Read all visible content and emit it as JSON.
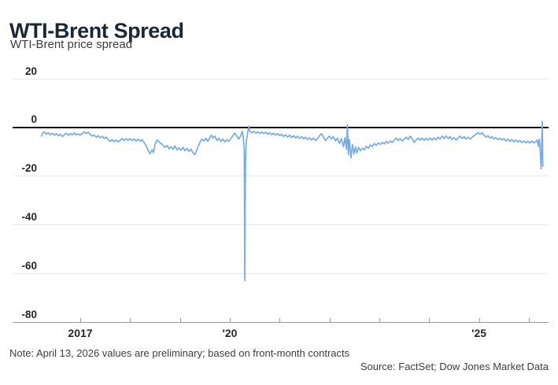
{
  "header": {
    "title": "WTI-Brent Spread",
    "subtitle": "WTI-Brent price spread"
  },
  "footer": {
    "note": "Note: April 13, 2026 values are preliminary; based on front-month contracts",
    "source": "Source: FactSet; Dow Jones Market Data"
  },
  "chart_data": {
    "type": "line",
    "title": "WTI-Brent Spread",
    "subtitle": "WTI-Brent price spread",
    "legend": "none",
    "grid": "horizontal-only",
    "line_color": "#79abde",
    "zero_line_color": "#111111",
    "grid_color": "#e9e9e9",
    "axis_color": "#9a9a9a",
    "label_color": "#23272b",
    "ylim": [
      -80,
      20
    ],
    "yticks": [
      20,
      0,
      -20,
      -40,
      -60,
      -80
    ],
    "xlim_years": [
      2016.1,
      2026.38
    ],
    "xticks": [
      {
        "year": 2017,
        "label": "2017"
      },
      {
        "year": 2018,
        "label": ""
      },
      {
        "year": 2019,
        "label": ""
      },
      {
        "year": 2020,
        "label": "'20"
      },
      {
        "year": 2021,
        "label": ""
      },
      {
        "year": 2022,
        "label": ""
      },
      {
        "year": 2023,
        "label": ""
      },
      {
        "year": 2024,
        "label": ""
      },
      {
        "year": 2025,
        "label": "'25"
      },
      {
        "year": 2026,
        "label": ""
      }
    ],
    "points": [
      [
        2016.22,
        -3.6
      ],
      [
        2016.25,
        -2.2
      ],
      [
        2016.28,
        -1.8
      ],
      [
        2016.32,
        -2.8
      ],
      [
        2016.36,
        -2.2
      ],
      [
        2016.4,
        -3.0
      ],
      [
        2016.44,
        -2.4
      ],
      [
        2016.48,
        -3.2
      ],
      [
        2016.52,
        -2.6
      ],
      [
        2016.56,
        -3.4
      ],
      [
        2016.6,
        -2.8
      ],
      [
        2016.64,
        -3.8
      ],
      [
        2016.68,
        -3.0
      ],
      [
        2016.72,
        -2.4
      ],
      [
        2016.76,
        -3.2
      ],
      [
        2016.8,
        -2.6
      ],
      [
        2016.84,
        -3.0
      ],
      [
        2016.88,
        -2.3
      ],
      [
        2016.92,
        -3.1
      ],
      [
        2016.96,
        -2.7
      ],
      [
        2017.0,
        -3.2
      ],
      [
        2017.04,
        -2.5
      ],
      [
        2017.08,
        -1.8
      ],
      [
        2017.12,
        -2.6
      ],
      [
        2017.16,
        -2.0
      ],
      [
        2017.2,
        -3.0
      ],
      [
        2017.24,
        -3.6
      ],
      [
        2017.28,
        -3.1
      ],
      [
        2017.32,
        -4.0
      ],
      [
        2017.36,
        -3.4
      ],
      [
        2017.4,
        -4.3
      ],
      [
        2017.44,
        -3.7
      ],
      [
        2017.48,
        -4.6
      ],
      [
        2017.52,
        -4.0
      ],
      [
        2017.56,
        -5.0
      ],
      [
        2017.6,
        -5.8
      ],
      [
        2017.64,
        -5.0
      ],
      [
        2017.68,
        -5.9
      ],
      [
        2017.72,
        -5.2
      ],
      [
        2017.76,
        -6.0
      ],
      [
        2017.8,
        -5.3
      ],
      [
        2017.84,
        -4.6
      ],
      [
        2017.88,
        -5.4
      ],
      [
        2017.92,
        -4.7
      ],
      [
        2017.96,
        -5.3
      ],
      [
        2018.0,
        -4.6
      ],
      [
        2018.04,
        -5.4
      ],
      [
        2018.08,
        -4.8
      ],
      [
        2018.12,
        -5.6
      ],
      [
        2018.16,
        -4.9
      ],
      [
        2018.2,
        -5.7
      ],
      [
        2018.24,
        -5.0
      ],
      [
        2018.28,
        -6.2
      ],
      [
        2018.32,
        -7.4
      ],
      [
        2018.36,
        -9.4
      ],
      [
        2018.4,
        -10.8
      ],
      [
        2018.44,
        -9.2
      ],
      [
        2018.47,
        -10.4
      ],
      [
        2018.5,
        -7.0
      ],
      [
        2018.54,
        -5.2
      ],
      [
        2018.58,
        -5.9
      ],
      [
        2018.62,
        -6.6
      ],
      [
        2018.66,
        -7.4
      ],
      [
        2018.7,
        -8.2
      ],
      [
        2018.74,
        -7.4
      ],
      [
        2018.78,
        -8.8
      ],
      [
        2018.82,
        -8.0
      ],
      [
        2018.86,
        -9.0
      ],
      [
        2018.9,
        -7.6
      ],
      [
        2018.94,
        -9.2
      ],
      [
        2018.98,
        -8.4
      ],
      [
        2019.02,
        -9.4
      ],
      [
        2019.06,
        -8.2
      ],
      [
        2019.1,
        -9.6
      ],
      [
        2019.14,
        -8.6
      ],
      [
        2019.18,
        -9.8
      ],
      [
        2019.22,
        -9.0
      ],
      [
        2019.26,
        -10.4
      ],
      [
        2019.3,
        -11.2
      ],
      [
        2019.33,
        -9.6
      ],
      [
        2019.36,
        -8.0
      ],
      [
        2019.4,
        -6.2
      ],
      [
        2019.44,
        -4.8
      ],
      [
        2019.48,
        -5.6
      ],
      [
        2019.52,
        -4.4
      ],
      [
        2019.56,
        -5.8
      ],
      [
        2019.6,
        -4.2
      ],
      [
        2019.63,
        -3.2
      ],
      [
        2019.66,
        -4.4
      ],
      [
        2019.7,
        -3.6
      ],
      [
        2019.74,
        -5.4
      ],
      [
        2019.78,
        -4.4
      ],
      [
        2019.82,
        -5.8
      ],
      [
        2019.86,
        -4.8
      ],
      [
        2019.9,
        -6.0
      ],
      [
        2019.94,
        -5.0
      ],
      [
        2019.98,
        -5.8
      ],
      [
        2020.02,
        -4.6
      ],
      [
        2020.06,
        -3.4
      ],
      [
        2020.1,
        -2.4
      ],
      [
        2020.14,
        -3.6
      ],
      [
        2020.18,
        -4.8
      ],
      [
        2020.22,
        -3.4
      ],
      [
        2020.25,
        -1.6
      ],
      [
        2020.27,
        -4.0
      ],
      [
        2020.29,
        -10.0
      ],
      [
        2020.3,
        -63.0
      ],
      [
        2020.315,
        -14.0
      ],
      [
        2020.33,
        -6.0
      ],
      [
        2020.36,
        -2.0
      ],
      [
        2020.38,
        0.5
      ],
      [
        2020.4,
        -1.6
      ],
      [
        2020.44,
        -2.2
      ],
      [
        2020.48,
        -1.6
      ],
      [
        2020.52,
        -2.4
      ],
      [
        2020.56,
        -1.8
      ],
      [
        2020.6,
        -2.5
      ],
      [
        2020.64,
        -1.9
      ],
      [
        2020.68,
        -2.6
      ],
      [
        2020.72,
        -2.0
      ],
      [
        2020.76,
        -2.8
      ],
      [
        2020.8,
        -2.2
      ],
      [
        2020.84,
        -3.0
      ],
      [
        2020.88,
        -2.4
      ],
      [
        2020.92,
        -3.2
      ],
      [
        2020.96,
        -2.6
      ],
      [
        2021.0,
        -3.4
      ],
      [
        2021.04,
        -2.8
      ],
      [
        2021.08,
        -3.8
      ],
      [
        2021.12,
        -3.0
      ],
      [
        2021.16,
        -4.0
      ],
      [
        2021.2,
        -3.2
      ],
      [
        2021.24,
        -4.2
      ],
      [
        2021.28,
        -3.4
      ],
      [
        2021.32,
        -4.4
      ],
      [
        2021.36,
        -3.6
      ],
      [
        2021.4,
        -4.6
      ],
      [
        2021.44,
        -3.8
      ],
      [
        2021.48,
        -4.8
      ],
      [
        2021.52,
        -4.0
      ],
      [
        2021.56,
        -5.0
      ],
      [
        2021.6,
        -4.2
      ],
      [
        2021.64,
        -5.2
      ],
      [
        2021.68,
        -4.4
      ],
      [
        2021.72,
        -5.4
      ],
      [
        2021.76,
        -4.6
      ],
      [
        2021.8,
        -3.4
      ],
      [
        2021.84,
        -2.6
      ],
      [
        2021.88,
        -4.0
      ],
      [
        2021.92,
        -5.4
      ],
      [
        2021.96,
        -4.4
      ],
      [
        2022.0,
        -3.6
      ],
      [
        2022.04,
        -4.8
      ],
      [
        2022.08,
        -3.8
      ],
      [
        2022.12,
        -5.6
      ],
      [
        2022.16,
        -4.4
      ],
      [
        2022.2,
        -6.6
      ],
      [
        2022.24,
        -4.6
      ],
      [
        2022.28,
        -8.0
      ],
      [
        2022.31,
        -4.2
      ],
      [
        2022.34,
        -9.0
      ],
      [
        2022.36,
        1.0
      ],
      [
        2022.38,
        -11.2
      ],
      [
        2022.4,
        -5.0
      ],
      [
        2022.43,
        -12.6
      ],
      [
        2022.46,
        -7.0
      ],
      [
        2022.49,
        -11.0
      ],
      [
        2022.52,
        -8.0
      ],
      [
        2022.55,
        -10.6
      ],
      [
        2022.58,
        -8.2
      ],
      [
        2022.62,
        -9.6
      ],
      [
        2022.66,
        -8.6
      ],
      [
        2022.7,
        -9.2
      ],
      [
        2022.74,
        -7.8
      ],
      [
        2022.78,
        -8.6
      ],
      [
        2022.82,
        -7.2
      ],
      [
        2022.86,
        -7.9
      ],
      [
        2022.9,
        -6.6
      ],
      [
        2022.94,
        -7.4
      ],
      [
        2022.98,
        -6.4
      ],
      [
        2023.02,
        -7.0
      ],
      [
        2023.06,
        -6.2
      ],
      [
        2023.1,
        -6.8
      ],
      [
        2023.14,
        -5.8
      ],
      [
        2023.18,
        -6.5
      ],
      [
        2023.22,
        -5.6
      ],
      [
        2023.26,
        -6.2
      ],
      [
        2023.3,
        -5.2
      ],
      [
        2023.34,
        -4.4
      ],
      [
        2023.38,
        -5.4
      ],
      [
        2023.42,
        -4.6
      ],
      [
        2023.46,
        -5.6
      ],
      [
        2023.5,
        -4.8
      ],
      [
        2023.54,
        -4.0
      ],
      [
        2023.58,
        -5.0
      ],
      [
        2023.62,
        -3.6
      ],
      [
        2023.66,
        -4.8
      ],
      [
        2023.7,
        -6.2
      ],
      [
        2023.74,
        -5.2
      ],
      [
        2023.78,
        -4.4
      ],
      [
        2023.82,
        -5.2
      ],
      [
        2023.86,
        -4.4
      ],
      [
        2023.9,
        -5.3
      ],
      [
        2023.94,
        -4.5
      ],
      [
        2023.98,
        -5.2
      ],
      [
        2024.02,
        -4.4
      ],
      [
        2024.06,
        -5.2
      ],
      [
        2024.1,
        -4.3
      ],
      [
        2024.14,
        -5.0
      ],
      [
        2024.18,
        -4.0
      ],
      [
        2024.22,
        -4.8
      ],
      [
        2024.26,
        -3.6
      ],
      [
        2024.3,
        -4.6
      ],
      [
        2024.34,
        -3.5
      ],
      [
        2024.38,
        -4.6
      ],
      [
        2024.42,
        -3.8
      ],
      [
        2024.46,
        -5.0
      ],
      [
        2024.5,
        -4.2
      ],
      [
        2024.54,
        -5.2
      ],
      [
        2024.58,
        -4.4
      ],
      [
        2024.62,
        -3.6
      ],
      [
        2024.66,
        -4.6
      ],
      [
        2024.7,
        -3.8
      ],
      [
        2024.74,
        -4.8
      ],
      [
        2024.78,
        -4.0
      ],
      [
        2024.82,
        -4.9
      ],
      [
        2024.86,
        -4.1
      ],
      [
        2024.9,
        -3.4
      ],
      [
        2024.94,
        -2.8
      ],
      [
        2024.98,
        -2.2
      ],
      [
        2025.02,
        -2.8
      ],
      [
        2025.06,
        -2.2
      ],
      [
        2025.1,
        -3.2
      ],
      [
        2025.14,
        -4.0
      ],
      [
        2025.18,
        -3.4
      ],
      [
        2025.22,
        -4.4
      ],
      [
        2025.26,
        -3.8
      ],
      [
        2025.3,
        -4.8
      ],
      [
        2025.34,
        -4.2
      ],
      [
        2025.38,
        -5.0
      ],
      [
        2025.42,
        -4.4
      ],
      [
        2025.46,
        -5.2
      ],
      [
        2025.5,
        -4.6
      ],
      [
        2025.54,
        -5.6
      ],
      [
        2025.58,
        -4.8
      ],
      [
        2025.62,
        -5.8
      ],
      [
        2025.66,
        -5.0
      ],
      [
        2025.7,
        -6.0
      ],
      [
        2025.74,
        -5.2
      ],
      [
        2025.78,
        -6.0
      ],
      [
        2025.82,
        -5.4
      ],
      [
        2025.86,
        -6.2
      ],
      [
        2025.9,
        -5.6
      ],
      [
        2025.94,
        -6.3
      ],
      [
        2025.98,
        -5.7
      ],
      [
        2026.02,
        -6.4
      ],
      [
        2026.06,
        -5.6
      ],
      [
        2026.1,
        -6.4
      ],
      [
        2026.14,
        -5.8
      ],
      [
        2026.17,
        -5.2
      ],
      [
        2026.19,
        -7.8
      ],
      [
        2026.21,
        -4.8
      ],
      [
        2026.23,
        -9.8
      ],
      [
        2026.245,
        -17.0
      ],
      [
        2026.26,
        -5.0
      ],
      [
        2026.27,
        2.5
      ],
      [
        2026.28,
        -16.0
      ]
    ]
  }
}
